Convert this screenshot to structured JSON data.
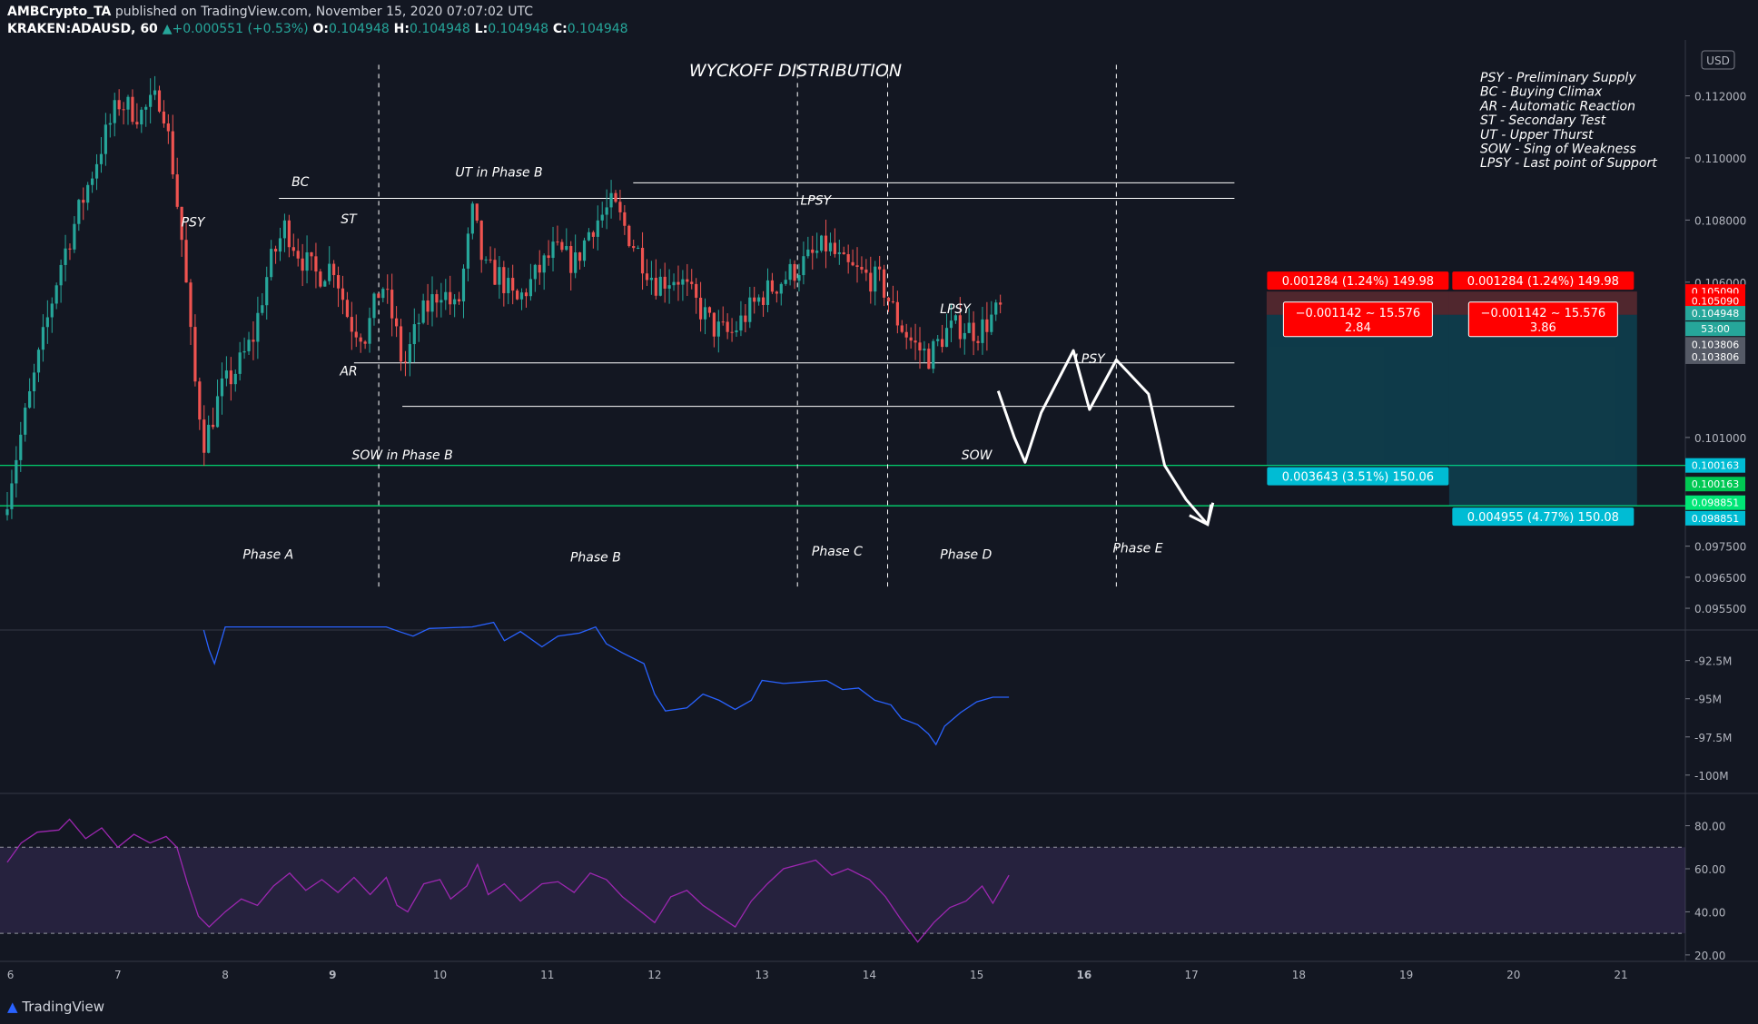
{
  "header": {
    "author": "AMBCrypto_TA",
    "published": " published on TradingView.com, November 15, 2020 07:07:02 UTC",
    "symbol": "KRAKEN:ADAUSD, 60",
    "change": "+0.000551 (+0.53%)",
    "o_label": "O:",
    "o_value": "0.104948",
    "h_label": "H:",
    "h_value": "0.104948",
    "l_label": "L:",
    "l_value": "0.104948",
    "c_label": "C:",
    "c_value": "0.104948"
  },
  "footer": {
    "brand": "TradingView"
  },
  "colors": {
    "bg": "#131722",
    "up": "#26a69a",
    "down": "#ef5350",
    "obv": "#2962ff",
    "rsi": "#9c27b0",
    "support": "#00e676",
    "stop": "#ff0000",
    "target": "#00bcd4"
  },
  "chart_data": {
    "type": "candlestick",
    "title": "WYCKOFF DISTRIBUTION",
    "currency_badge": "USD",
    "price_axis": {
      "range": [
        0.0948,
        0.1138
      ],
      "ticks": [
        "0.112000",
        "0.110000",
        "0.108000",
        "0.106000",
        "0.101000",
        "0.097500",
        "0.096500",
        "0.095500"
      ],
      "tick_values": [
        0.112,
        0.11,
        0.108,
        0.106,
        0.101,
        0.0975,
        0.0965,
        0.0955
      ]
    },
    "time_axis": {
      "ticks": [
        "6",
        "7",
        "8",
        "9",
        "10",
        "11",
        "12",
        "13",
        "14",
        "15",
        "16",
        "17",
        "18",
        "19",
        "20",
        "21"
      ],
      "bold": [
        "9",
        "16"
      ],
      "day_range": [
        5.97,
        21.6
      ]
    },
    "price_path": [
      [
        5.97,
        0.0985
      ],
      [
        6.1,
        0.1005
      ],
      [
        6.3,
        0.1035
      ],
      [
        6.5,
        0.1065
      ],
      [
        6.7,
        0.1085
      ],
      [
        6.9,
        0.1105
      ],
      [
        7.05,
        0.1118
      ],
      [
        7.25,
        0.1114
      ],
      [
        7.45,
        0.112
      ],
      [
        7.55,
        0.1098
      ],
      [
        7.65,
        0.107
      ],
      [
        7.75,
        0.103
      ],
      [
        7.85,
        0.1008
      ],
      [
        8.0,
        0.1025
      ],
      [
        8.15,
        0.1032
      ],
      [
        8.3,
        0.1042
      ],
      [
        8.45,
        0.1065
      ],
      [
        8.6,
        0.1078
      ],
      [
        8.75,
        0.1068
      ],
      [
        8.9,
        0.1062
      ],
      [
        9.05,
        0.1066
      ],
      [
        9.2,
        0.1047
      ],
      [
        9.35,
        0.1043
      ],
      [
        9.5,
        0.106
      ],
      [
        9.62,
        0.1046
      ],
      [
        9.7,
        0.1032
      ],
      [
        9.85,
        0.1048
      ],
      [
        10.05,
        0.1058
      ],
      [
        10.2,
        0.105
      ],
      [
        10.35,
        0.1083
      ],
      [
        10.45,
        0.1064
      ],
      [
        10.6,
        0.1062
      ],
      [
        10.75,
        0.1053
      ],
      [
        10.95,
        0.1063
      ],
      [
        11.1,
        0.107
      ],
      [
        11.3,
        0.1066
      ],
      [
        11.45,
        0.1078
      ],
      [
        11.65,
        0.1085
      ],
      [
        11.85,
        0.1072
      ],
      [
        12.05,
        0.106
      ],
      [
        12.25,
        0.1062
      ],
      [
        12.45,
        0.1052
      ],
      [
        12.6,
        0.1045
      ],
      [
        12.75,
        0.1043
      ],
      [
        12.9,
        0.105
      ],
      [
        13.05,
        0.1056
      ],
      [
        13.2,
        0.106
      ],
      [
        13.35,
        0.1064
      ],
      [
        13.5,
        0.1068
      ],
      [
        13.65,
        0.1072
      ],
      [
        13.8,
        0.1065
      ],
      [
        14.0,
        0.1062
      ],
      [
        14.15,
        0.106
      ],
      [
        14.3,
        0.1048
      ],
      [
        14.45,
        0.104
      ],
      [
        14.6,
        0.1036
      ],
      [
        14.75,
        0.1044
      ],
      [
        14.9,
        0.1046
      ],
      [
        15.05,
        0.1044
      ],
      [
        15.25,
        0.1051
      ]
    ],
    "annotations": [
      {
        "text": "PSY",
        "day": 7.7,
        "price": 0.1078
      },
      {
        "text": "BC",
        "day": 8.7,
        "price": 0.1091
      },
      {
        "text": "ST",
        "day": 9.15,
        "price": 0.1079
      },
      {
        "text": "AR",
        "day": 9.15,
        "price": 0.103
      },
      {
        "text": "UT in Phase B",
        "day": 10.55,
        "price": 0.1094
      },
      {
        "text": "SOW in Phase B",
        "day": 9.65,
        "price": 0.1003
      },
      {
        "text": "LPSY",
        "day": 13.5,
        "price": 0.1085
      },
      {
        "text": "LPSY",
        "day": 14.8,
        "price": 0.105
      },
      {
        "text": "LPSY",
        "day": 16.05,
        "price": 0.1034
      },
      {
        "text": "SOW",
        "day": 15.0,
        "price": 0.1003
      },
      {
        "text": "Phase A",
        "day": 8.4,
        "price": 0.0971
      },
      {
        "text": "Phase B",
        "day": 11.45,
        "price": 0.097
      },
      {
        "text": "Phase C",
        "day": 13.7,
        "price": 0.0972
      },
      {
        "text": "Phase D",
        "day": 14.9,
        "price": 0.0971
      },
      {
        "text": "Phase E",
        "day": 16.5,
        "price": 0.0973
      }
    ],
    "resistance_lines": [
      {
        "from": 11.8,
        "to": 17.4,
        "price": 0.1092
      },
      {
        "from": 8.5,
        "to": 17.4,
        "price": 0.1087
      },
      {
        "from": 9.2,
        "to": 17.4,
        "price": 0.1034
      },
      {
        "from": 9.65,
        "to": 17.4,
        "price": 0.102
      }
    ],
    "support_lines": [
      0.1001,
      0.0988
    ],
    "phase_dividers": [
      9.43,
      13.33,
      14.17,
      16.3
    ],
    "projection": [
      [
        15.2,
        0.1025
      ],
      [
        15.35,
        0.101
      ],
      [
        15.45,
        0.1002
      ],
      [
        15.6,
        0.1018
      ],
      [
        15.9,
        0.1038
      ],
      [
        16.05,
        0.1019
      ],
      [
        16.3,
        0.1035
      ],
      [
        16.6,
        0.1024
      ],
      [
        16.75,
        0.1001
      ],
      [
        16.95,
        0.099
      ],
      [
        17.15,
        0.0982
      ],
      [
        17.2,
        0.0989
      ]
    ],
    "legend_notes": [
      "PSY - Preliminary Supply",
      "BC - Buying Climax",
      "AR - Automatic Reaction",
      "ST - Secondary Test",
      "UT - Upper Thurst",
      "SOW - Sing of Weakness",
      "LPSY - Last point of Support"
    ],
    "price_tags": [
      {
        "text": "0.105090",
        "price": 0.1057,
        "color": "#ff0000"
      },
      {
        "text": "0.105090",
        "price": 0.1054,
        "color": "#ff0000"
      },
      {
        "text": "0.104948",
        "price": 0.105,
        "color": "#26a69a"
      },
      {
        "text": "53:00",
        "price": 0.1045,
        "color": "#26a69a"
      },
      {
        "text": "0.103806",
        "price": 0.104,
        "color": "#555a66"
      },
      {
        "text": "0.103806",
        "price": 0.1036,
        "color": "#555a66"
      },
      {
        "text": "0.100163",
        "price": 0.1001,
        "color": "#00bcd4"
      },
      {
        "text": "0.100163",
        "price": 0.0995,
        "color": "#00c853"
      },
      {
        "text": "0.098851",
        "price": 0.0989,
        "color": "#00e676"
      },
      {
        "text": "0.098851",
        "price": 0.0984,
        "color": "#00bcd4"
      }
    ],
    "positions": [
      {
        "stop_label": "0.001284 (1.24%) 149.98",
        "mid_label_1": "−0.001142 ∼ 15.576",
        "mid_label_2": "2.84",
        "target_label": "0.003643 (3.51%) 150.06",
        "stop": 0.1057,
        "entry": 0.10495,
        "target": 0.1001,
        "from": 17.7,
        "to": 19.4
      },
      {
        "stop_label": "0.001284 (1.24%) 149.98",
        "mid_label_1": "−0.001142 ∼ 15.576",
        "mid_label_2": "3.86",
        "target_label": "0.004955 (4.77%) 150.08",
        "stop": 0.1057,
        "entry": 0.10495,
        "target": 0.0988,
        "from": 19.4,
        "to": 21.15
      }
    ],
    "obv": {
      "ticks": [
        "-92.5M",
        "-95M",
        "-97.5M",
        "-100M"
      ],
      "tick_values": [
        -92.5,
        -95,
        -97.5,
        -100
      ],
      "range": [
        -101.2,
        -90.5
      ],
      "path": [
        [
          7.8,
          -90.5
        ],
        [
          7.85,
          -91.8
        ],
        [
          7.9,
          -92.7
        ],
        [
          8.0,
          -90.3
        ],
        [
          9.5,
          -90.3
        ],
        [
          9.62,
          -90.6
        ],
        [
          9.75,
          -90.9
        ],
        [
          9.9,
          -90.4
        ],
        [
          10.3,
          -90.3
        ],
        [
          10.5,
          -90.0
        ],
        [
          10.6,
          -91.2
        ],
        [
          10.75,
          -90.6
        ],
        [
          10.95,
          -91.6
        ],
        [
          11.1,
          -90.9
        ],
        [
          11.3,
          -90.7
        ],
        [
          11.45,
          -90.3
        ],
        [
          11.55,
          -91.4
        ],
        [
          11.7,
          -92.0
        ],
        [
          11.9,
          -92.7
        ],
        [
          12.0,
          -94.7
        ],
        [
          12.1,
          -95.8
        ],
        [
          12.3,
          -95.6
        ],
        [
          12.45,
          -94.7
        ],
        [
          12.6,
          -95.1
        ],
        [
          12.75,
          -95.7
        ],
        [
          12.9,
          -95.1
        ],
        [
          13.0,
          -93.8
        ],
        [
          13.2,
          -94.0
        ],
        [
          13.4,
          -93.9
        ],
        [
          13.6,
          -93.8
        ],
        [
          13.75,
          -94.4
        ],
        [
          13.9,
          -94.3
        ],
        [
          14.05,
          -95.1
        ],
        [
          14.2,
          -95.4
        ],
        [
          14.3,
          -96.3
        ],
        [
          14.45,
          -96.7
        ],
        [
          14.55,
          -97.3
        ],
        [
          14.62,
          -98.0
        ],
        [
          14.7,
          -96.8
        ],
        [
          14.85,
          -95.9
        ],
        [
          15.0,
          -95.2
        ],
        [
          15.15,
          -94.9
        ],
        [
          15.3,
          -94.9
        ]
      ]
    },
    "rsi": {
      "ticks": [
        "80.00",
        "60.00",
        "40.00",
        "20.00"
      ],
      "tick_values": [
        80,
        60,
        40,
        20
      ],
      "range": [
        17,
        95
      ],
      "band": [
        30,
        70
      ],
      "path": [
        [
          5.97,
          63
        ],
        [
          6.1,
          72
        ],
        [
          6.25,
          77
        ],
        [
          6.45,
          78
        ],
        [
          6.55,
          83
        ],
        [
          6.7,
          74
        ],
        [
          6.85,
          79
        ],
        [
          7.0,
          70
        ],
        [
          7.15,
          76
        ],
        [
          7.3,
          72
        ],
        [
          7.45,
          75
        ],
        [
          7.55,
          70
        ],
        [
          7.65,
          53
        ],
        [
          7.75,
          38
        ],
        [
          7.85,
          33
        ],
        [
          8.0,
          40
        ],
        [
          8.15,
          46
        ],
        [
          8.3,
          43
        ],
        [
          8.45,
          52
        ],
        [
          8.6,
          58
        ],
        [
          8.75,
          50
        ],
        [
          8.9,
          55
        ],
        [
          9.05,
          49
        ],
        [
          9.2,
          56
        ],
        [
          9.35,
          48
        ],
        [
          9.5,
          56
        ],
        [
          9.6,
          43
        ],
        [
          9.7,
          40
        ],
        [
          9.85,
          53
        ],
        [
          10.0,
          55
        ],
        [
          10.1,
          46
        ],
        [
          10.25,
          52
        ],
        [
          10.35,
          62
        ],
        [
          10.45,
          48
        ],
        [
          10.6,
          53
        ],
        [
          10.75,
          45
        ],
        [
          10.95,
          53
        ],
        [
          11.1,
          54
        ],
        [
          11.25,
          49
        ],
        [
          11.4,
          58
        ],
        [
          11.55,
          55
        ],
        [
          11.7,
          47
        ],
        [
          11.85,
          41
        ],
        [
          12.0,
          35
        ],
        [
          12.15,
          47
        ],
        [
          12.3,
          50
        ],
        [
          12.45,
          43
        ],
        [
          12.6,
          38
        ],
        [
          12.75,
          33
        ],
        [
          12.9,
          45
        ],
        [
          13.05,
          53
        ],
        [
          13.2,
          60
        ],
        [
          13.35,
          62
        ],
        [
          13.5,
          64
        ],
        [
          13.65,
          57
        ],
        [
          13.8,
          60
        ],
        [
          14.0,
          55
        ],
        [
          14.15,
          47
        ],
        [
          14.3,
          36
        ],
        [
          14.45,
          26
        ],
        [
          14.6,
          35
        ],
        [
          14.75,
          42
        ],
        [
          14.9,
          45
        ],
        [
          15.05,
          52
        ],
        [
          15.15,
          44
        ],
        [
          15.3,
          57
        ]
      ]
    }
  }
}
